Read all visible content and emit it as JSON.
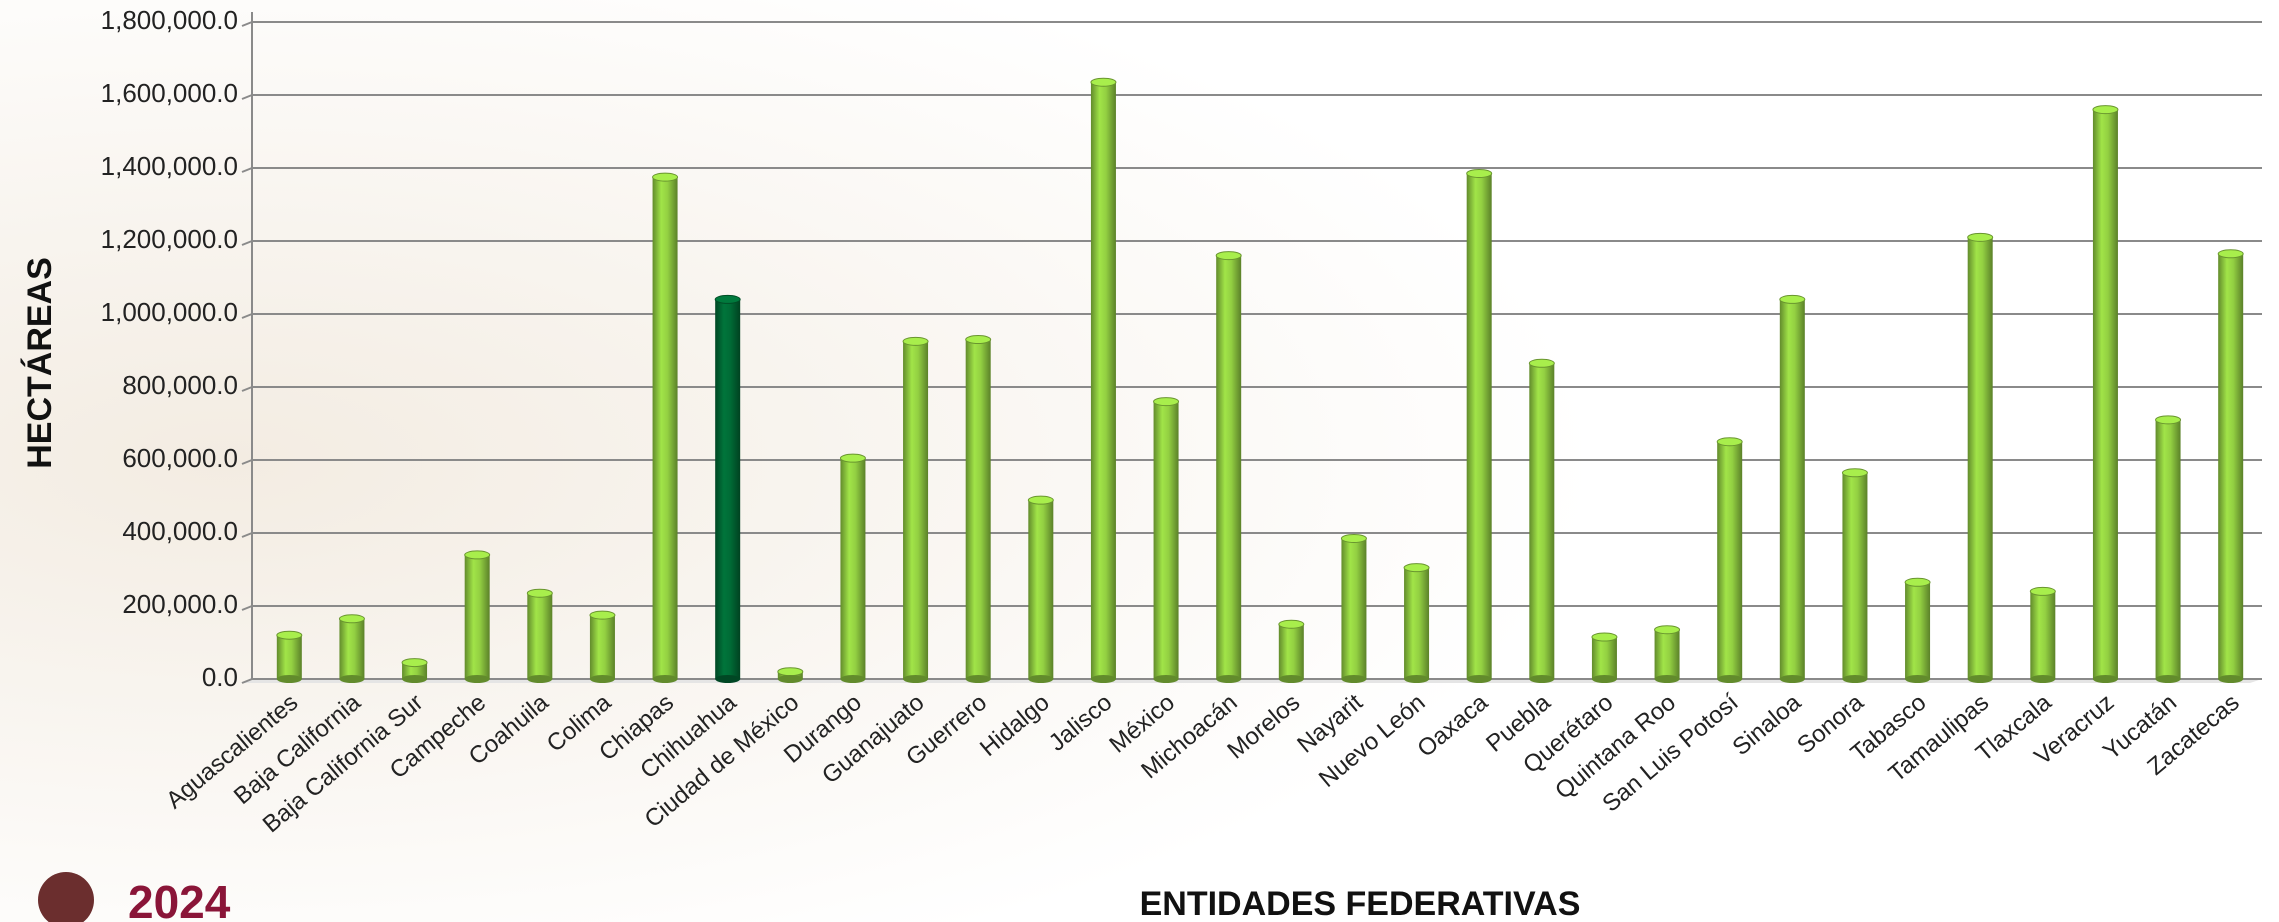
{
  "chart_data": {
    "type": "bar",
    "y_label": "HECTÁREAS",
    "x_label": "ENTIDADES FEDERATIVAS",
    "logo_text": "2024",
    "categories": [
      "Aguascalientes",
      "Baja California",
      "Baja California Sur",
      "Campeche",
      "Coahuila",
      "Colima",
      "Chiapas",
      "Chihuahua",
      "Ciudad de México",
      "Durango",
      "Guanajuato",
      "Guerrero",
      "Hidalgo",
      "Jalisco",
      "México",
      "Michoacán",
      "Morelos",
      "Nayarit",
      "Nuevo León",
      "Oaxaca",
      "Puebla",
      "Querétaro",
      "Quintana Roo",
      "San Luis Potosí",
      "Sinaloa",
      "Sonora",
      "Tabasco",
      "Tamaulipas",
      "Tlaxcala",
      "Veracruz",
      "Yucatán",
      "Zacatecas"
    ],
    "values": [
      120000,
      165000,
      45000,
      340000,
      235000,
      175000,
      1375000,
      1040000,
      20000,
      605000,
      925000,
      930000,
      490000,
      1635000,
      760000,
      1160000,
      150000,
      385000,
      305000,
      1385000,
      865000,
      115000,
      135000,
      650000,
      1040000,
      565000,
      265000,
      1210000,
      240000,
      1560000,
      710000,
      1165000
    ],
    "colors": [
      "#8cc63f",
      "#8cc63f",
      "#8cc63f",
      "#8cc63f",
      "#8cc63f",
      "#8cc63f",
      "#8cc63f",
      "#006633",
      "#8cc63f",
      "#8cc63f",
      "#8cc63f",
      "#8cc63f",
      "#8cc63f",
      "#8cc63f",
      "#8cc63f",
      "#8cc63f",
      "#8cc63f",
      "#8cc63f",
      "#8cc63f",
      "#8cc63f",
      "#8cc63f",
      "#8cc63f",
      "#8cc63f",
      "#8cc63f",
      "#8cc63f",
      "#8cc63f",
      "#8cc63f",
      "#8cc63f",
      "#8cc63f",
      "#8cc63f",
      "#8cc63f",
      "#8cc63f"
    ],
    "ylim": [
      0,
      1800000
    ],
    "yticks": [
      {
        "value": 0,
        "label": "0.0"
      },
      {
        "value": 200000,
        "label": "200,000.0"
      },
      {
        "value": 400000,
        "label": "400,000.0"
      },
      {
        "value": 600000,
        "label": "600,000.0"
      },
      {
        "value": 800000,
        "label": "800,000.0"
      },
      {
        "value": 1000000,
        "label": "1,000,000.0"
      },
      {
        "value": 1200000,
        "label": "1,200,000.0"
      },
      {
        "value": 1400000,
        "label": "1,400,000.0"
      },
      {
        "value": 1600000,
        "label": "1,600,000.0"
      },
      {
        "value": 1800000,
        "label": "1,800,000.0"
      }
    ],
    "grid": true
  }
}
